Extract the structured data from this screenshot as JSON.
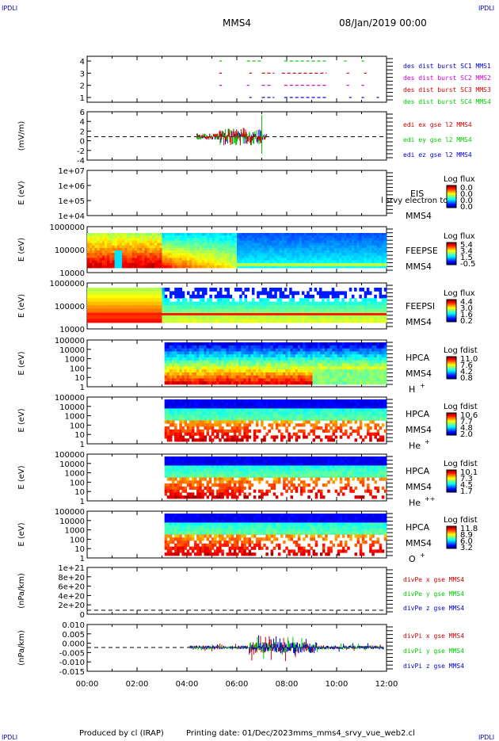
{
  "header": {
    "corner_label": "IPDLI",
    "spacecraft": "MMS4",
    "date": "08/Jan/2019 00:00"
  },
  "footer": {
    "produced_by": "Produced by cl (IRAP)",
    "printing_date": "Printing date: 01/Dec/2023",
    "product": "mms_mms4_srvy_vue_web2.cl"
  },
  "chart_data": [
    {
      "type": "line",
      "panel": "burst-availability",
      "ylim": [
        0.5,
        4.5
      ],
      "ticks": [
        "1",
        "2",
        "3",
        "4"
      ],
      "ylabel": "",
      "legend": [
        {
          "name": "des dist burst SC1 MMS1",
          "color": "#0000cc"
        },
        {
          "name": "des dist burst SC2 MMS2",
          "color": "#cc00cc"
        },
        {
          "name": "des dist burst SC3 MMS3",
          "color": "#cc0000"
        },
        {
          "name": "des dist burst SC4 MMS4",
          "color": "#00cc00"
        }
      ]
    },
    {
      "type": "line",
      "panel": "edi-field",
      "ylabel": "(mV/m)",
      "ylim": [
        -6,
        6
      ],
      "ticks": [
        "6",
        "4",
        "2",
        "0",
        "-2",
        "-4"
      ],
      "legend": [
        {
          "name": "edi ex gse l2 MMS4",
          "color": "#cc0000"
        },
        {
          "name": "edi ey gse l2 MMS4",
          "color": "#00cc00"
        },
        {
          "name": "edi ez gse l2 MMS4",
          "color": "#0000cc"
        }
      ]
    },
    {
      "type": "heatmap",
      "panel": "eis",
      "ylabel": "E (eV)",
      "ticks": [
        "1e+07",
        "1e+06",
        "1e+05",
        "1e+04"
      ],
      "labels": [
        "EIS",
        "MMS4"
      ],
      "overlay": "l srvy electron to",
      "colorbar_title": "Log flux",
      "colorbar_ticks": [
        "0.0",
        "0.0",
        "0.0",
        "0.0"
      ]
    },
    {
      "type": "heatmap",
      "panel": "feepse",
      "ylabel": "E (eV)",
      "ticks": [
        "1000000",
        "100000",
        "10000"
      ],
      "labels": [
        "FEEPSE",
        "MMS4"
      ],
      "colorbar_title": "Log flux",
      "colorbar_ticks": [
        "5.4",
        "3.4",
        "1.5",
        "-0.5"
      ]
    },
    {
      "type": "heatmap",
      "panel": "feepsi",
      "ylabel": "E (eV)",
      "ticks": [
        "1000000",
        "100000",
        "10000"
      ],
      "labels": [
        "FEEPSI",
        "MMS4"
      ],
      "colorbar_title": "Log flux",
      "colorbar_ticks": [
        "4.4",
        "3.0",
        "1.6",
        "0.2"
      ]
    },
    {
      "type": "heatmap",
      "panel": "hpca-h",
      "ylabel": "E (eV)",
      "ticks": [
        "100000",
        "10000",
        "1000",
        "100",
        "10",
        "1"
      ],
      "labels": [
        "HPCA",
        "MMS4",
        "H",
        "+"
      ],
      "colorbar_title": "Log fdist",
      "colorbar_ticks": [
        "11.0",
        "7.6",
        "4.2",
        "0.8"
      ]
    },
    {
      "type": "heatmap",
      "panel": "hpca-he",
      "ylabel": "E (eV)",
      "ticks": [
        "100000",
        "10000",
        "1000",
        "100",
        "10",
        "1"
      ],
      "labels": [
        "HPCA",
        "MMS4",
        "He",
        "+"
      ],
      "colorbar_title": "Log fdist",
      "colorbar_ticks": [
        "10.6",
        "7.7",
        "4.8",
        "2.0"
      ]
    },
    {
      "type": "heatmap",
      "panel": "hpca-he2",
      "ylabel": "E (eV)",
      "ticks": [
        "100000",
        "10000",
        "1000",
        "100",
        "10",
        "1"
      ],
      "labels": [
        "HPCA",
        "MMS4",
        "He",
        "++"
      ],
      "colorbar_title": "Log fdist",
      "colorbar_ticks": [
        "10.1",
        "7.3",
        "4.5",
        "1.7"
      ]
    },
    {
      "type": "heatmap",
      "panel": "hpca-o",
      "ylabel": "E (eV)",
      "ticks": [
        "100000",
        "10000",
        "1000",
        "100",
        "10",
        "1"
      ],
      "labels": [
        "HPCA",
        "MMS4",
        "O",
        "+"
      ],
      "colorbar_title": "Log fdist",
      "colorbar_ticks": [
        "11.8",
        "8.9",
        "6.0",
        "3.2"
      ]
    },
    {
      "type": "line",
      "panel": "divpe",
      "ylabel": "(nPa/km)",
      "ylim": [
        0,
        1e+21
      ],
      "ticks": [
        "1e+21",
        "8e+20",
        "6e+20",
        "4e+20",
        "2e+20",
        "0"
      ],
      "legend": [
        {
          "name": "divPe x gse MMS4",
          "color": "#cc0000"
        },
        {
          "name": "divPe y gse MMS4",
          "color": "#00cc00"
        },
        {
          "name": "divPe z gse MMS4",
          "color": "#0000cc"
        }
      ]
    },
    {
      "type": "line",
      "panel": "divpi",
      "ylabel": "(nPa/km)",
      "ylim": [
        -0.015,
        0.01
      ],
      "ticks": [
        "0.010",
        "0.005",
        "0.000",
        "-0.005",
        "-0.010",
        "-0.015"
      ],
      "legend": [
        {
          "name": "divPi x gse MMS4",
          "color": "#cc0000"
        },
        {
          "name": "divPi y gse MMS4",
          "color": "#00cc00"
        },
        {
          "name": "divPi z gse MMS4",
          "color": "#0000cc"
        }
      ]
    }
  ],
  "x_axis": {
    "ticks": [
      "00:00",
      "02:00",
      "04:00",
      "06:00",
      "08:00",
      "10:00",
      "12:00"
    ],
    "range_hours": [
      0,
      12
    ]
  }
}
